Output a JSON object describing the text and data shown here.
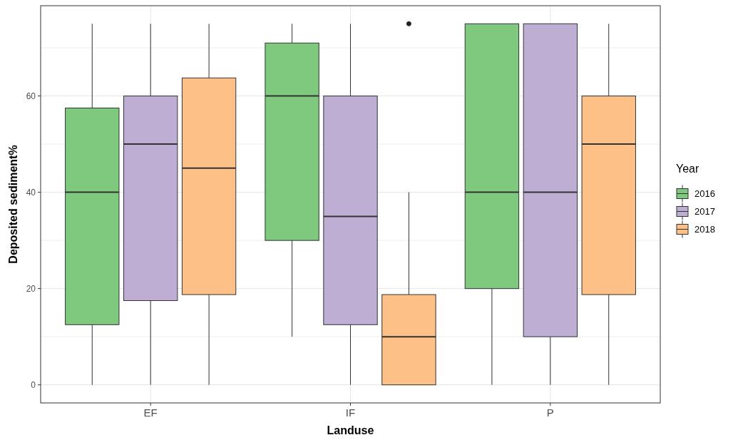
{
  "chart_data": {
    "type": "box",
    "xlabel": "Landuse",
    "ylabel": "Deposited sediment%",
    "legend_title": "Year",
    "categories": [
      "EF",
      "IF",
      "P"
    ],
    "ylim": [
      -3.75,
      78.75
    ],
    "yticks": [
      0,
      {
        "value": 10,
        "label": null
      },
      20,
      {
        "value": 30,
        "label": null
      },
      40,
      {
        "value": 50,
        "label": null
      },
      60,
      {
        "value": 70,
        "label": null
      }
    ],
    "grid": true,
    "legend": "right",
    "series": [
      {
        "name": "2016",
        "color": "#7fc97f",
        "boxes": [
          {
            "low": 0,
            "q1": 12.5,
            "median": 40,
            "q3": 57.5,
            "high": 75
          },
          {
            "low": 10,
            "q1": 30,
            "median": 60,
            "q3": 71,
            "high": 75
          },
          {
            "low": 0,
            "q1": 20,
            "median": 40,
            "q3": 75,
            "high": 75
          }
        ]
      },
      {
        "name": "2017",
        "color": "#beaed4",
        "boxes": [
          {
            "low": 0,
            "q1": 17.5,
            "median": 50,
            "q3": 60,
            "high": 75
          },
          {
            "low": 0,
            "q1": 12.5,
            "median": 35,
            "q3": 60,
            "high": 75
          },
          {
            "low": 0,
            "q1": 10,
            "median": 40,
            "q3": 75,
            "high": 75
          }
        ]
      },
      {
        "name": "2018",
        "color": "#fdc086",
        "boxes": [
          {
            "low": 0,
            "q1": 18.75,
            "median": 45,
            "q3": 63.75,
            "high": 75
          },
          {
            "low": 0,
            "q1": 0,
            "median": 10,
            "q3": 18.75,
            "high": 40,
            "outliers": [
              75
            ]
          },
          {
            "low": 0,
            "q1": 18.75,
            "median": 50,
            "q3": 60,
            "high": 75
          }
        ]
      }
    ]
  }
}
